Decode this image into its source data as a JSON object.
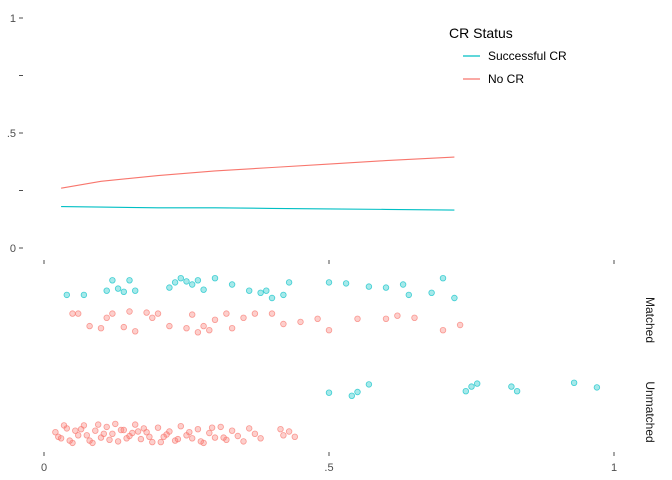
{
  "chart_data": {
    "type": "scatter",
    "legend": {
      "title": "CR Status",
      "placement": "top-right",
      "entries": [
        {
          "label": "Successful CR",
          "color": "#00BFC4"
        },
        {
          "label": "No CR",
          "color": "#F8766D"
        }
      ]
    },
    "x_axis": {
      "range": [
        0,
        1
      ],
      "ticks": [
        0,
        0.5,
        1
      ],
      "tick_labels": [
        "0",
        ".5",
        "1"
      ]
    },
    "line_panel": {
      "y_range": [
        0,
        1
      ],
      "y_ticks": [
        0,
        0.25,
        0.5,
        0.75,
        1
      ],
      "y_tick_labels": [
        "0",
        "",
        ".5",
        "",
        "1"
      ],
      "series": [
        {
          "name": "Successful CR",
          "color": "#00BFC4",
          "x": [
            0.03,
            0.1,
            0.2,
            0.3,
            0.4,
            0.5,
            0.6,
            0.72
          ],
          "y": [
            0.18,
            0.178,
            0.175,
            0.175,
            0.172,
            0.17,
            0.168,
            0.165
          ]
        },
        {
          "name": "No CR",
          "color": "#F8766D",
          "x": [
            0.03,
            0.1,
            0.2,
            0.3,
            0.4,
            0.5,
            0.6,
            0.72
          ],
          "y": [
            0.26,
            0.29,
            0.315,
            0.335,
            0.35,
            0.365,
            0.38,
            0.395
          ]
        }
      ]
    },
    "strips": [
      {
        "label": "Matched",
        "series": [
          {
            "name": "Successful CR",
            "color": "#00BFC4",
            "x": [
              0.04,
              0.07,
              0.12,
              0.13,
              0.15,
              0.16,
              0.11,
              0.14,
              0.23,
              0.25,
              0.26,
              0.24,
              0.28,
              0.3,
              0.33,
              0.36,
              0.38,
              0.39,
              0.4,
              0.43,
              0.5,
              0.53,
              0.57,
              0.6,
              0.63,
              0.64,
              0.68,
              0.7,
              0.72,
              0.27,
              0.42,
              0.22
            ],
            "y": [
              0.78,
              0.78,
              0.92,
              0.84,
              0.92,
              0.82,
              0.82,
              0.81,
              0.9,
              0.91,
              0.88,
              0.94,
              0.83,
              0.94,
              0.88,
              0.82,
              0.8,
              0.82,
              0.75,
              0.9,
              0.9,
              0.89,
              0.86,
              0.85,
              0.88,
              0.78,
              0.8,
              0.94,
              0.75,
              0.92,
              0.78,
              0.85
            ]
          },
          {
            "name": "No CR",
            "color": "#F8766D",
            "x": [
              0.05,
              0.06,
              0.1,
              0.12,
              0.15,
              0.18,
              0.2,
              0.22,
              0.08,
              0.14,
              0.25,
              0.28,
              0.3,
              0.32,
              0.27,
              0.29,
              0.35,
              0.37,
              0.4,
              0.42,
              0.45,
              0.48,
              0.5,
              0.55,
              0.6,
              0.62,
              0.65,
              0.7,
              0.73,
              0.33,
              0.19,
              0.26,
              0.11,
              0.16
            ],
            "y": [
              0.6,
              0.6,
              0.46,
              0.6,
              0.62,
              0.61,
              0.6,
              0.48,
              0.48,
              0.47,
              0.46,
              0.48,
              0.54,
              0.6,
              0.42,
              0.44,
              0.56,
              0.6,
              0.6,
              0.5,
              0.52,
              0.55,
              0.44,
              0.55,
              0.55,
              0.58,
              0.56,
              0.44,
              0.49,
              0.46,
              0.56,
              0.59,
              0.56,
              0.43
            ]
          }
        ]
      },
      {
        "label": "Unmatched",
        "series": [
          {
            "name": "Successful CR",
            "color": "#00BFC4",
            "x": [
              0.5,
              0.54,
              0.55,
              0.57,
              0.74,
              0.75,
              0.76,
              0.82,
              0.83,
              0.93,
              0.97
            ],
            "y": [
              0.78,
              0.74,
              0.79,
              0.89,
              0.8,
              0.86,
              0.9,
              0.86,
              0.8,
              0.91,
              0.85
            ]
          },
          {
            "name": "No CR",
            "color": "#F8766D",
            "x": [
              0.02,
              0.03,
              0.04,
              0.05,
              0.06,
              0.07,
              0.08,
              0.09,
              0.1,
              0.11,
              0.12,
              0.13,
              0.14,
              0.15,
              0.16,
              0.17,
              0.18,
              0.19,
              0.2,
              0.21,
              0.22,
              0.23,
              0.24,
              0.25,
              0.26,
              0.27,
              0.28,
              0.29,
              0.3,
              0.31,
              0.32,
              0.33,
              0.34,
              0.35,
              0.36,
              0.37,
              0.38,
              0.42,
              0.43,
              0.44,
              0.045,
              0.065,
              0.085,
              0.105,
              0.125,
              0.145,
              0.165,
              0.185,
              0.205,
              0.035,
              0.075,
              0.115,
              0.135,
              0.155,
              0.175,
              0.095,
              0.215,
              0.235,
              0.255,
              0.275,
              0.295,
              0.315,
              0.025,
              0.055,
              0.415
            ],
            "y": [
              0.26,
              0.18,
              0.31,
              0.12,
              0.22,
              0.35,
              0.15,
              0.28,
              0.19,
              0.33,
              0.24,
              0.14,
              0.29,
              0.21,
              0.36,
              0.17,
              0.26,
              0.13,
              0.32,
              0.2,
              0.27,
              0.15,
              0.34,
              0.22,
              0.18,
              0.3,
              0.12,
              0.25,
              0.19,
              0.33,
              0.16,
              0.28,
              0.21,
              0.14,
              0.31,
              0.24,
              0.18,
              0.22,
              0.27,
              0.2,
              0.15,
              0.3,
              0.12,
              0.24,
              0.37,
              0.18,
              0.27,
              0.2,
              0.13,
              0.35,
              0.22,
              0.16,
              0.29,
              0.25,
              0.31,
              0.36,
              0.23,
              0.17,
              0.26,
              0.14,
              0.32,
              0.19,
              0.2,
              0.28,
              0.3
            ]
          }
        ]
      }
    ]
  }
}
